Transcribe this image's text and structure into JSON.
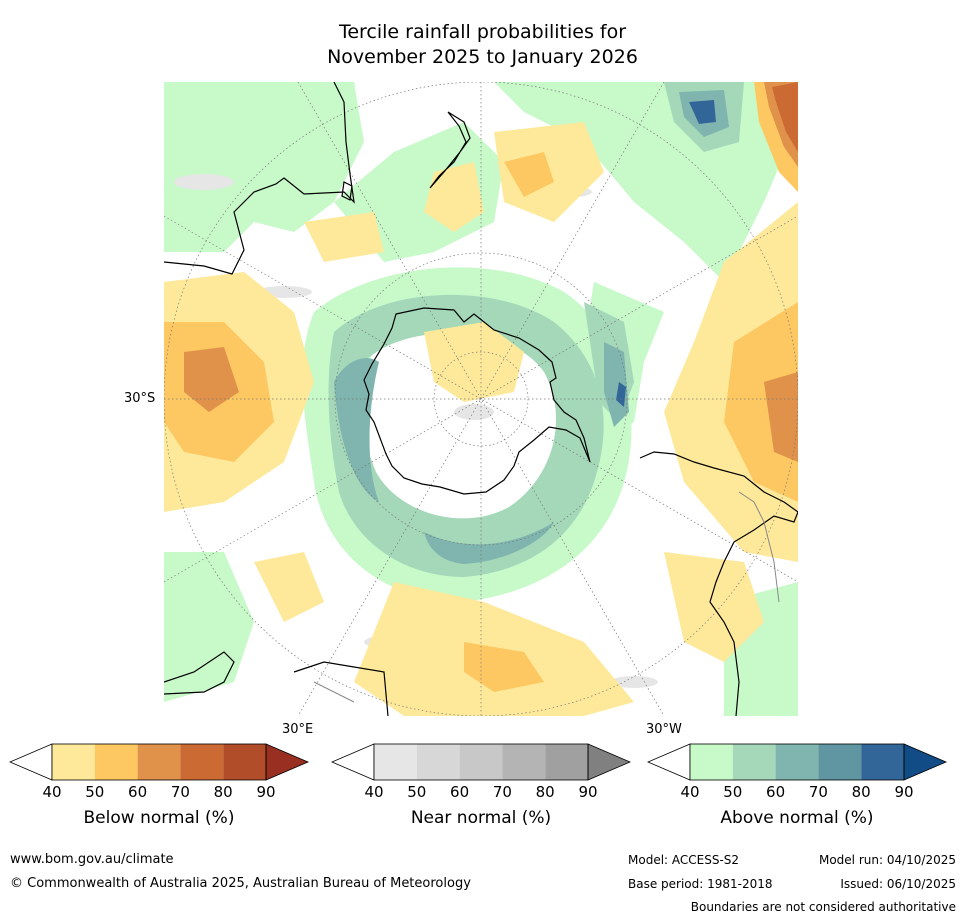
{
  "title": {
    "line1": "Tercile rainfall probabilities for",
    "line2": "November 2025 to January 2026"
  },
  "map": {
    "lat_label": "30°S",
    "lon_label_left": "30°E",
    "lon_label_right": "30°W"
  },
  "legends": [
    {
      "title": "Below normal (%)",
      "ticks": [
        "40",
        "50",
        "60",
        "70",
        "80",
        "90"
      ],
      "colors": [
        "#ffffff",
        "#fee99a",
        "#fdc862",
        "#e0914a",
        "#cc6a34",
        "#b14e29",
        "#982f20"
      ]
    },
    {
      "title": "Near normal (%)",
      "ticks": [
        "40",
        "50",
        "60",
        "70",
        "80",
        "90"
      ],
      "colors": [
        "#ffffff",
        "#e6e6e6",
        "#d7d7d7",
        "#c8c8c8",
        "#b4b4b4",
        "#a0a0a0",
        "#808080"
      ]
    },
    {
      "title": "Above normal (%)",
      "ticks": [
        "40",
        "50",
        "60",
        "70",
        "80",
        "90"
      ],
      "colors": [
        "#ffffff",
        "#c7f9c9",
        "#a4d8b9",
        "#7fb5ae",
        "#5f96a2",
        "#336698",
        "#114c86"
      ]
    }
  ],
  "footer": {
    "website": "www.bom.gov.au/climate",
    "copyright": "© Commonwealth of Australia 2025, Australian Bureau of Meteorology",
    "model": "Model: ACCESS-S2",
    "base_period": "Base period: 1981-2018",
    "model_run": "Model run: 04/10/2025",
    "issued": "Issued: 06/10/2025",
    "disclaimer": "Boundaries are not considered authoritative"
  }
}
